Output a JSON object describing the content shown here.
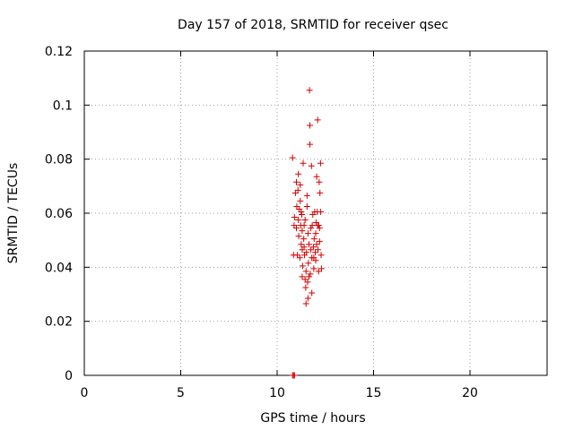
{
  "chart_data": {
    "type": "scatter",
    "title": "Day 157 of 2018, SRMTID for receiver qsec",
    "xlabel": "GPS time / hours",
    "ylabel": "SRMTID / TECUs",
    "xlim": [
      0,
      24
    ],
    "ylim": [
      0,
      0.12
    ],
    "xticks": [
      0,
      5,
      10,
      15,
      20
    ],
    "xtick_labels": [
      "0",
      "5",
      "10",
      "15",
      "20"
    ],
    "yticks": [
      0,
      0.02,
      0.04,
      0.06,
      0.08,
      0.1,
      0.12
    ],
    "ytick_labels": [
      "0",
      "0.02",
      "0.04",
      "0.06",
      "0.08",
      "0.1",
      "0.12"
    ],
    "grid": true,
    "marker": "+",
    "color": "#d40000",
    "series": [
      {
        "points": [
          [
            10.8,
            0.0
          ],
          [
            10.85,
            0.0
          ],
          [
            10.9,
            0.0
          ],
          [
            10.8,
            0.0805
          ],
          [
            10.85,
            0.0445
          ],
          [
            10.88,
            0.0555
          ],
          [
            10.9,
            0.0585
          ],
          [
            10.95,
            0.0675
          ],
          [
            11.0,
            0.0715
          ],
          [
            11.0,
            0.0545
          ],
          [
            11.02,
            0.0625
          ],
          [
            11.05,
            0.0445
          ],
          [
            11.08,
            0.0685
          ],
          [
            11.1,
            0.0745
          ],
          [
            11.1,
            0.0575
          ],
          [
            11.12,
            0.0515
          ],
          [
            11.15,
            0.0615
          ],
          [
            11.18,
            0.0435
          ],
          [
            11.2,
            0.0705
          ],
          [
            11.2,
            0.0645
          ],
          [
            11.22,
            0.0555
          ],
          [
            11.25,
            0.0485
          ],
          [
            11.28,
            0.0595
          ],
          [
            11.3,
            0.0535
          ],
          [
            11.3,
            0.0465
          ],
          [
            11.32,
            0.0405
          ],
          [
            11.35,
            0.0785
          ],
          [
            11.38,
            0.0505
          ],
          [
            11.4,
            0.0555
          ],
          [
            11.42,
            0.0445
          ],
          [
            11.45,
            0.0355
          ],
          [
            11.48,
            0.0325
          ],
          [
            11.5,
            0.0265
          ],
          [
            11.5,
            0.0385
          ],
          [
            11.52,
            0.0455
          ],
          [
            11.55,
            0.0625
          ],
          [
            11.55,
            0.0665
          ],
          [
            11.58,
            0.0345
          ],
          [
            11.6,
            0.0285
          ],
          [
            11.62,
            0.0415
          ],
          [
            11.65,
            0.0485
          ],
          [
            11.68,
            0.1055
          ],
          [
            11.7,
            0.0925
          ],
          [
            11.7,
            0.0855
          ],
          [
            11.72,
            0.0375
          ],
          [
            11.75,
            0.0465
          ],
          [
            11.78,
            0.0775
          ],
          [
            11.8,
            0.0305
          ],
          [
            11.8,
            0.0435
          ],
          [
            11.82,
            0.0555
          ],
          [
            11.85,
            0.0595
          ],
          [
            11.88,
            0.0475
          ],
          [
            11.9,
            0.0395
          ],
          [
            11.92,
            0.0505
          ],
          [
            11.95,
            0.0605
          ],
          [
            11.98,
            0.0455
          ],
          [
            12.0,
            0.0525
          ],
          [
            12.0,
            0.0425
          ],
          [
            12.02,
            0.0565
          ],
          [
            12.05,
            0.0735
          ],
          [
            12.08,
            0.0605
          ],
          [
            12.1,
            0.0945
          ],
          [
            12.1,
            0.0555
          ],
          [
            12.12,
            0.0465
          ],
          [
            12.15,
            0.0385
          ],
          [
            12.18,
            0.0715
          ],
          [
            12.2,
            0.0545
          ],
          [
            12.2,
            0.0495
          ],
          [
            12.22,
            0.0675
          ],
          [
            12.25,
            0.0785
          ],
          [
            12.25,
            0.0605
          ],
          [
            12.28,
            0.0445
          ],
          [
            12.3,
            0.0395
          ],
          [
            11.3,
            0.0365
          ],
          [
            11.45,
            0.0575
          ],
          [
            11.6,
            0.0525
          ],
          [
            11.75,
            0.0545
          ],
          [
            11.9,
            0.0435
          ],
          [
            12.05,
            0.0485
          ],
          [
            11.25,
            0.0605
          ],
          [
            11.4,
            0.0475
          ],
          [
            11.65,
            0.0365
          ],
          [
            12.15,
            0.0555
          ]
        ]
      }
    ]
  }
}
